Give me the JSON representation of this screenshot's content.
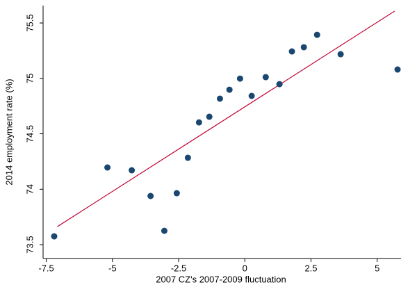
{
  "chart_data": {
    "type": "scatter",
    "x_label": "2007 CZ's 2007-2009 fluctuation",
    "y_label": "2014 employment rate (%)",
    "series": [
      {
        "color": "#1a476f",
        "x": [
          -7.2,
          -5.19,
          -4.27,
          -3.56,
          -3.04,
          -2.57,
          -2.15,
          -1.73,
          -1.34,
          -0.94,
          -0.58,
          -0.18,
          0.26,
          0.79,
          1.31,
          1.78,
          2.23,
          2.73,
          3.62,
          5.77
        ],
        "values": [
          73.575,
          74.196,
          74.171,
          73.939,
          73.625,
          73.964,
          74.284,
          74.603,
          74.654,
          74.817,
          74.898,
          74.998,
          74.842,
          75.011,
          74.948,
          75.243,
          75.281,
          75.393,
          75.218,
          75.08
        ]
      }
    ],
    "fit_line": {
      "color": "#c10534",
      "x": [
        -7.08,
        5.66
      ],
      "values": [
        73.663,
        75.607
      ]
    },
    "xlim": [
      -7.62,
      5.9
    ],
    "ylim": [
      73.375,
      75.657
    ],
    "xticks": [
      -7.5,
      -5,
      -2.5,
      0,
      2.5,
      5
    ],
    "yticks": [
      73.5,
      74,
      74.5,
      75,
      75.5
    ]
  }
}
